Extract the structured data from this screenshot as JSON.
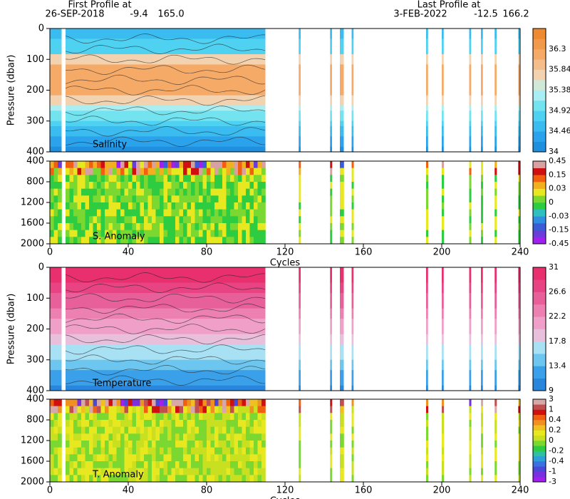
{
  "header": {
    "first_title": "First Profile at",
    "first_date": "26-SEP-2018",
    "first_lat": "-9.4",
    "first_lon": "165.0",
    "last_title": "Last Profile at",
    "last_date": "3-FEB-2022",
    "last_lat": "-12.5",
    "last_lon": "166.2"
  },
  "chart_data": [
    {
      "type": "heatmap",
      "label": "Salinity",
      "ylabel": "Pressure (dbar)",
      "ylim": [
        0,
        400
      ],
      "yticks": [
        0,
        100,
        200,
        300,
        400
      ],
      "xlim": [
        0,
        240
      ],
      "profiles": [
        [
          0,
          6
        ],
        [
          8,
          110
        ],
        [
          127,
          128
        ],
        [
          143,
          144
        ],
        [
          148,
          150
        ],
        [
          154,
          155
        ],
        [
          192,
          193
        ],
        [
          200,
          201
        ],
        [
          214,
          215
        ],
        [
          220,
          221
        ],
        [
          227,
          228
        ],
        [
          239,
          240
        ]
      ],
      "colorbar": {
        "colors": [
          "#1f8fe0",
          "#2aa3ec",
          "#3bbcf0",
          "#4fd2f2",
          "#73e3f0",
          "#a8eef2",
          "#cfe8d8",
          "#f3d2b0",
          "#f4be8c",
          "#f5aa68",
          "#f29a4c",
          "#ee8a30"
        ],
        "labels": [
          34,
          34.46,
          34.92,
          35.38,
          35.84,
          36.3
        ]
      }
    },
    {
      "type": "anomaly",
      "label": "S. Anomaly",
      "ylim": [
        400,
        2000
      ],
      "yticks": [
        400,
        800,
        1200,
        1600,
        2000
      ],
      "xlim": [
        0,
        240
      ],
      "xticks": [
        0,
        40,
        80,
        120,
        160,
        200,
        240
      ],
      "xlabel": "Cycles",
      "profiles": [
        [
          0,
          6
        ],
        [
          8,
          110
        ],
        [
          127,
          128
        ],
        [
          143,
          144
        ],
        [
          148,
          150
        ],
        [
          154,
          155
        ],
        [
          192,
          193
        ],
        [
          200,
          201
        ],
        [
          214,
          215
        ],
        [
          220,
          221
        ],
        [
          227,
          228
        ],
        [
          239,
          240
        ]
      ],
      "colorbar": {
        "colors": [
          "#a020f0",
          "#6a3dd8",
          "#3a5cd6",
          "#2e8ee0",
          "#2ec0c0",
          "#2ecc40",
          "#7ad830",
          "#e8e820",
          "#f0b020",
          "#f06010",
          "#d01010",
          "#d8a0a0"
        ],
        "labels": [
          -0.45,
          -0.15,
          -0.03,
          0,
          0.03,
          0.15,
          0.45
        ]
      }
    },
    {
      "type": "heatmap",
      "label": "Temperature",
      "ylabel": "Pressure (dbar)",
      "ylim": [
        0,
        400
      ],
      "yticks": [
        0,
        100,
        200,
        300,
        400
      ],
      "xlim": [
        0,
        240
      ],
      "profiles": [
        [
          0,
          6
        ],
        [
          8,
          110
        ],
        [
          127,
          128
        ],
        [
          143,
          144
        ],
        [
          148,
          150
        ],
        [
          154,
          155
        ],
        [
          192,
          193
        ],
        [
          200,
          201
        ],
        [
          214,
          215
        ],
        [
          220,
          221
        ],
        [
          227,
          228
        ],
        [
          239,
          240
        ]
      ],
      "colorbar": {
        "colors": [
          "#2a86dc",
          "#3aa0ea",
          "#6cc6f0",
          "#a8e0f4",
          "#e8c0dc",
          "#f0a0c8",
          "#ec80b0",
          "#e8609a",
          "#e84484",
          "#e8306e"
        ],
        "labels": [
          9,
          13.4,
          17.8,
          22.2,
          26.6,
          31
        ]
      }
    },
    {
      "type": "anomaly",
      "label": "T. Anomaly",
      "ylim": [
        400,
        2000
      ],
      "yticks": [
        400,
        800,
        1200,
        1600,
        2000
      ],
      "xlim": [
        0,
        240
      ],
      "xticks": [
        0,
        40,
        80,
        120,
        160,
        200,
        240
      ],
      "xlabel": "Cycles",
      "profiles": [
        [
          0,
          6
        ],
        [
          8,
          110
        ],
        [
          127,
          128
        ],
        [
          143,
          144
        ],
        [
          148,
          150
        ],
        [
          154,
          155
        ],
        [
          192,
          193
        ],
        [
          200,
          201
        ],
        [
          214,
          215
        ],
        [
          220,
          221
        ],
        [
          227,
          228
        ],
        [
          239,
          240
        ]
      ],
      "colorbar": {
        "colors": [
          "#a020f0",
          "#7a30e0",
          "#4a48d8",
          "#3a70e0",
          "#2ea0d8",
          "#2ec0a0",
          "#2ecc40",
          "#7ad830",
          "#c8e020",
          "#e8e820",
          "#f0c020",
          "#f09020",
          "#f06010",
          "#d01010",
          "#c05050",
          "#d8a8a8"
        ],
        "labels": [
          -3,
          -1,
          -0.4,
          -0.2,
          0,
          0.2,
          0.4,
          1,
          3
        ]
      }
    }
  ]
}
